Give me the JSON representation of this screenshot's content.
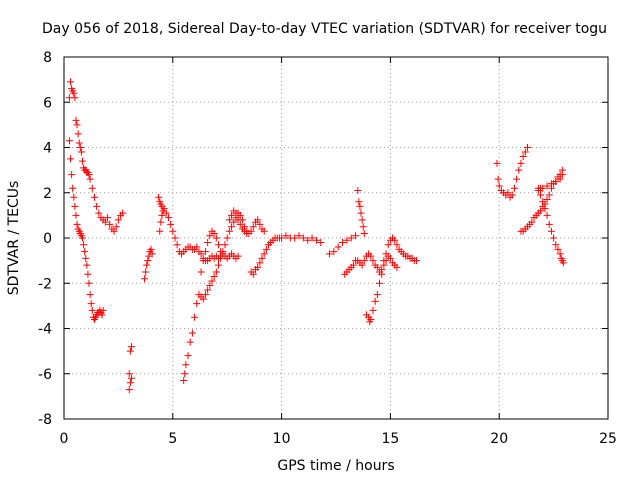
{
  "chart_data": {
    "type": "scatter",
    "title": "Day 056 of 2018, Sidereal Day-to-day VTEC variation (SDTVAR) for receiver togu",
    "xlabel": "GPS time / hours",
    "ylabel": "SDTVAR / TECUs",
    "xlim": [
      0,
      25
    ],
    "ylim": [
      -8,
      8
    ],
    "xticks": [
      0,
      5,
      10,
      15,
      20,
      25
    ],
    "yticks": [
      -8,
      -6,
      -4,
      -2,
      0,
      2,
      4,
      6,
      8
    ],
    "grid": true,
    "marker": "+",
    "color": "#ff0000",
    "segments": [
      {
        "name": "seg-a",
        "x": [
          0.25,
          0.3,
          0.35,
          0.4,
          0.45,
          0.5,
          0.55,
          0.6,
          0.65,
          0.7,
          0.75,
          0.8,
          0.85,
          0.9,
          0.95,
          1.0,
          1.05,
          1.1,
          1.15,
          1.2,
          1.3,
          1.4,
          1.5,
          1.6,
          1.7,
          1.8,
          1.9,
          2.0,
          2.1,
          2.2,
          2.3,
          2.4,
          2.5,
          2.6,
          2.7
        ],
        "y": [
          6.2,
          6.9,
          6.6,
          6.5,
          6.4,
          6.2,
          5.2,
          5.0,
          4.6,
          4.2,
          4.0,
          3.8,
          3.4,
          3.1,
          3.0,
          3.0,
          2.9,
          2.9,
          2.8,
          2.6,
          2.2,
          1.8,
          1.4,
          1.1,
          0.9,
          0.8,
          0.7,
          0.9,
          0.6,
          0.4,
          0.3,
          0.5,
          0.8,
          1.0,
          1.1
        ]
      },
      {
        "name": "seg-b",
        "x": [
          0.25,
          0.3,
          0.35,
          0.4,
          0.45,
          0.5,
          0.55,
          0.6,
          0.65,
          0.7,
          0.75,
          0.8,
          0.85,
          0.9,
          0.95,
          1.0,
          1.05,
          1.1,
          1.15,
          1.2,
          1.25,
          1.3,
          1.35,
          1.4,
          1.45,
          1.5,
          1.55,
          1.6,
          1.65,
          1.7,
          1.75,
          1.8
        ],
        "y": [
          4.3,
          3.5,
          2.8,
          2.2,
          1.8,
          1.4,
          1.0,
          0.6,
          0.4,
          0.3,
          0.2,
          0.1,
          0.0,
          -0.3,
          -0.6,
          -0.9,
          -1.2,
          -1.6,
          -2.0,
          -2.5,
          -2.9,
          -3.2,
          -3.5,
          -3.6,
          -3.5,
          -3.4,
          -3.3,
          -3.3,
          -3.2,
          -3.3,
          -3.4,
          -3.2
        ]
      },
      {
        "name": "seg-c",
        "x": [
          3.0,
          3.05,
          3.1,
          3.0,
          3.05,
          3.1
        ],
        "y": [
          -6.7,
          -6.4,
          -6.2,
          -6.0,
          -5.0,
          -4.8
        ]
      },
      {
        "name": "seg-d",
        "x": [
          3.7,
          3.75,
          3.8,
          3.85,
          3.9,
          3.95,
          4.0,
          4.05
        ],
        "y": [
          -1.8,
          -1.5,
          -1.2,
          -1.0,
          -0.8,
          -0.6,
          -0.5,
          -0.7
        ]
      },
      {
        "name": "seg-e",
        "x": [
          4.35,
          4.4,
          4.45,
          4.5,
          4.6,
          4.7,
          4.8,
          4.9,
          5.0,
          5.1,
          5.2,
          5.3,
          5.4,
          5.5,
          5.6,
          5.7,
          5.8,
          5.9,
          6.0,
          6.1,
          6.2,
          6.3,
          6.4,
          6.5,
          6.6,
          6.7,
          6.8,
          6.9,
          7.0,
          7.1,
          7.2,
          7.3,
          7.4,
          7.5,
          7.6,
          7.7,
          7.8,
          7.9,
          8.0
        ],
        "y": [
          1.8,
          1.6,
          1.5,
          1.4,
          1.3,
          1.1,
          0.9,
          0.6,
          0.3,
          0.0,
          -0.3,
          -0.6,
          -0.7,
          -0.6,
          -0.5,
          -0.4,
          -0.4,
          -0.5,
          -0.5,
          -0.4,
          -0.6,
          -0.7,
          -0.9,
          -1.0,
          -1.0,
          -0.9,
          -0.8,
          -0.9,
          -0.8,
          -0.9,
          -0.8,
          -0.7,
          -0.8,
          -0.9,
          -0.8,
          -0.7,
          -0.8,
          -0.9,
          -0.8
        ]
      },
      {
        "name": "seg-f",
        "x": [
          4.4,
          4.45,
          4.5,
          4.55
        ],
        "y": [
          0.3,
          0.7,
          1.0,
          1.2
        ]
      },
      {
        "name": "seg-g",
        "x": [
          5.5,
          5.55,
          5.6,
          5.7,
          5.8,
          5.9,
          6.0,
          6.1,
          6.2,
          6.3,
          6.4,
          6.5,
          6.6,
          6.7,
          6.8,
          6.9,
          7.0,
          7.1,
          7.2,
          7.3,
          7.4,
          7.5,
          7.6,
          7.7,
          7.8,
          7.9,
          8.0,
          8.1,
          8.2,
          8.3,
          8.4,
          8.5,
          8.6,
          8.7,
          8.8,
          8.9,
          9.0,
          9.1,
          9.2
        ],
        "y": [
          -6.3,
          -6.0,
          -5.6,
          -5.2,
          -4.6,
          -4.2,
          -3.5,
          -2.9,
          -2.5,
          -2.6,
          -2.7,
          -2.5,
          -2.3,
          -2.1,
          -1.9,
          -1.7,
          -1.5,
          -1.2,
          -0.9,
          -0.6,
          -0.3,
          0.0,
          0.3,
          0.5,
          0.7,
          0.9,
          1.1,
          1.0,
          0.8,
          0.5,
          0.3,
          0.2,
          0.3,
          0.5,
          0.7,
          0.8,
          0.6,
          0.4,
          0.3
        ]
      },
      {
        "name": "seg-h",
        "x": [
          6.3,
          6.4,
          6.5,
          6.6,
          6.7,
          6.8,
          6.9,
          7.0,
          7.1,
          7.2
        ],
        "y": [
          -1.5,
          -1.0,
          -0.6,
          -0.2,
          0.1,
          0.3,
          0.2,
          0.0,
          -0.3,
          -0.6
        ]
      },
      {
        "name": "seg-i",
        "x": [
          7.6,
          7.7,
          7.8,
          7.9,
          8.0,
          8.1,
          8.2,
          8.3,
          8.4
        ],
        "y": [
          0.8,
          1.0,
          1.2,
          1.1,
          0.8,
          0.6,
          0.4,
          0.3,
          0.2
        ]
      },
      {
        "name": "seg-j",
        "x": [
          8.6,
          8.7,
          8.8,
          8.9,
          9.0,
          9.1,
          9.2,
          9.3,
          9.4,
          9.5,
          9.6,
          9.7,
          9.8,
          9.9,
          10.0,
          10.2,
          10.4,
          10.6,
          10.8,
          11.0,
          11.2,
          11.4,
          11.6,
          11.8
        ],
        "y": [
          -1.5,
          -1.6,
          -1.4,
          -1.3,
          -1.1,
          -0.9,
          -0.7,
          -0.5,
          -0.3,
          -0.2,
          -0.1,
          0.0,
          0.0,
          0.0,
          0.0,
          0.1,
          0.0,
          0.0,
          0.1,
          0.0,
          -0.1,
          0.0,
          -0.1,
          -0.2
        ]
      },
      {
        "name": "seg-k",
        "x": [
          12.2,
          12.4,
          12.6,
          12.8,
          13.0,
          13.2,
          13.4
        ],
        "y": [
          -0.7,
          -0.6,
          -0.4,
          -0.2,
          -0.1,
          0.0,
          0.1
        ]
      },
      {
        "name": "seg-l",
        "x": [
          13.5,
          13.55,
          13.6,
          13.65,
          13.7,
          13.75,
          13.8
        ],
        "y": [
          2.1,
          1.6,
          1.4,
          1.1,
          0.8,
          0.5,
          0.2
        ]
      },
      {
        "name": "seg-m",
        "x": [
          12.9,
          13.0,
          13.1,
          13.2,
          13.3,
          13.4,
          13.5,
          13.6,
          13.7,
          13.8,
          13.9,
          14.0,
          14.1,
          14.2,
          14.3,
          14.4,
          14.5,
          14.6,
          14.7,
          14.8,
          14.9,
          15.0,
          15.1,
          15.2,
          15.3,
          15.4,
          15.5,
          15.6,
          15.7,
          15.8,
          15.9,
          16.0,
          16.1,
          16.2
        ],
        "y": [
          -1.6,
          -1.5,
          -1.4,
          -1.3,
          -1.2,
          -1.0,
          -1.0,
          -1.1,
          -1.2,
          -1.0,
          -0.8,
          -0.7,
          -0.8,
          -1.0,
          -1.2,
          -1.3,
          -1.5,
          -1.4,
          -1.0,
          -0.7,
          -0.3,
          -0.1,
          0.0,
          -0.1,
          -0.3,
          -0.5,
          -0.6,
          -0.7,
          -0.8,
          -0.8,
          -0.9,
          -0.9,
          -1.0,
          -1.0
        ]
      },
      {
        "name": "seg-n",
        "x": [
          13.9,
          14.0,
          14.05,
          14.1,
          14.2,
          14.3,
          14.4,
          14.5,
          14.6,
          14.7,
          14.8,
          14.9,
          15.0,
          15.1,
          15.2,
          15.3
        ],
        "y": [
          -3.4,
          -3.5,
          -3.7,
          -3.6,
          -3.2,
          -2.8,
          -2.5,
          -2.0,
          -1.6,
          -1.2,
          -1.0,
          -0.8,
          -0.9,
          -1.1,
          -1.2,
          -1.3
        ]
      },
      {
        "name": "seg-o",
        "x": [
          19.9,
          19.95,
          20.0,
          20.1,
          20.2,
          20.3,
          20.4,
          20.5,
          20.6,
          20.7,
          20.8,
          20.9,
          21.0,
          21.1,
          21.2,
          21.3
        ],
        "y": [
          3.3,
          2.6,
          2.3,
          2.1,
          2.0,
          1.9,
          2.0,
          1.8,
          1.9,
          2.2,
          2.6,
          3.0,
          3.3,
          3.6,
          3.8,
          4.0
        ]
      },
      {
        "name": "seg-p",
        "x": [
          21.0,
          21.1,
          21.2,
          21.3,
          21.4,
          21.5,
          21.6,
          21.7,
          21.8,
          21.9,
          22.0,
          22.1,
          22.2,
          22.3,
          22.4,
          22.5,
          22.6,
          22.7,
          22.8,
          22.9
        ],
        "y": [
          0.3,
          0.3,
          0.4,
          0.5,
          0.6,
          0.7,
          0.9,
          1.0,
          1.1,
          1.2,
          1.4,
          1.5,
          1.7,
          1.9,
          2.2,
          2.4,
          2.5,
          2.7,
          2.8,
          3.0
        ]
      },
      {
        "name": "seg-q",
        "x": [
          21.8,
          21.9,
          22.0,
          22.1,
          22.2,
          22.3,
          22.4,
          22.5,
          22.6,
          22.7,
          22.8,
          22.85,
          22.9,
          22.95
        ],
        "y": [
          2.2,
          1.9,
          1.6,
          1.3,
          1.0,
          0.6,
          0.3,
          0.0,
          -0.3,
          -0.5,
          -0.7,
          -0.9,
          -1.0,
          -1.1
        ]
      },
      {
        "name": "seg-r",
        "x": [
          21.8,
          21.9,
          22.0,
          22.2,
          22.4,
          22.6,
          22.8,
          22.9
        ],
        "y": [
          2.1,
          2.2,
          2.2,
          2.3,
          2.4,
          2.5,
          2.6,
          2.8
        ]
      }
    ]
  }
}
